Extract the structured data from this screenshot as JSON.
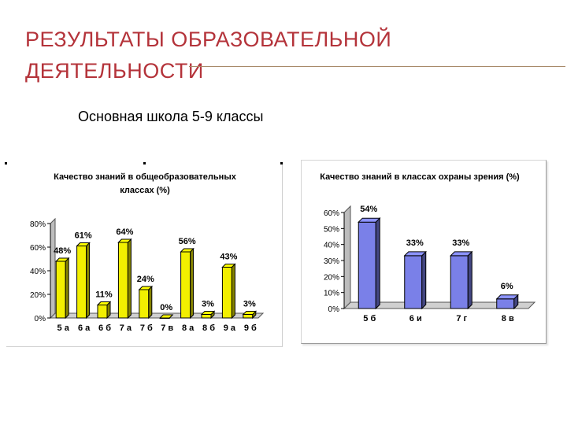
{
  "slide": {
    "title_line1": "РЕЗУЛЬТАТЫ ОБРАЗОВАТЕЛЬНОЙ",
    "title_line2": "ДЕЯТЕЛЬНОСТИ",
    "subtitle": "Основная школа  5-9 классы"
  },
  "colors": {
    "title": "#b4333a",
    "bar_yellow": "#f2ef00",
    "bar_blue": "#7a80e8"
  },
  "chart_data": [
    {
      "type": "bar",
      "title_lines": [
        "Качество знаний в общеобразовательных",
        "классах (%)"
      ],
      "categories": [
        "5 а",
        "6 а",
        "6 б",
        "7 а",
        "7 б",
        "7 в",
        "8 а",
        "8 б",
        "9 а",
        "9 б"
      ],
      "values": [
        48,
        61,
        11,
        64,
        24,
        0,
        56,
        3,
        43,
        3
      ],
      "data_labels": [
        "48%",
        "61%",
        "11%",
        "64%",
        "24%",
        "0%",
        "56%",
        "3%",
        "43%",
        "3%"
      ],
      "yticks": [
        "0%",
        "20%",
        "40%",
        "60%",
        "80%"
      ],
      "ylim": [
        0,
        80
      ],
      "grid": false,
      "legend": "none",
      "color": "#f2ef00",
      "style": "3d"
    },
    {
      "type": "bar",
      "title_lines": [
        "Качество знаний в классах охраны зрения (%)"
      ],
      "categories": [
        "5 б",
        "6 и",
        "7 г",
        "8 в"
      ],
      "values": [
        54,
        33,
        33,
        6
      ],
      "data_labels": [
        "54%",
        "33%",
        "33%",
        "6%"
      ],
      "yticks": [
        "0%",
        "10%",
        "20%",
        "30%",
        "40%",
        "50%",
        "60%"
      ],
      "ylim": [
        0,
        60
      ],
      "grid": false,
      "legend": "none",
      "color": "#7a80e8",
      "style": "3d"
    }
  ]
}
